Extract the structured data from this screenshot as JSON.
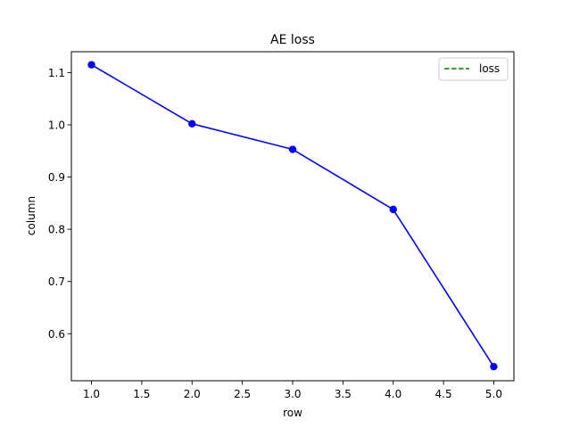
{
  "chart_data": {
    "type": "line",
    "title": "AE loss",
    "xlabel": "row",
    "ylabel": "column",
    "xlim": [
      0.8,
      5.2
    ],
    "ylim": [
      0.51,
      1.14
    ],
    "xticks": [
      1.0,
      1.5,
      2.0,
      2.5,
      3.0,
      3.5,
      4.0,
      4.5,
      5.0
    ],
    "xtick_labels": [
      "1.0",
      "1.5",
      "2.0",
      "2.5",
      "3.0",
      "3.5",
      "4.0",
      "4.5",
      "5.0"
    ],
    "yticks": [
      0.6,
      0.7,
      0.8,
      0.9,
      1.0,
      1.1
    ],
    "ytick_labels": [
      "0.6",
      "0.7",
      "0.8",
      "0.9",
      "1.0",
      "1.1"
    ],
    "grid": false,
    "legend": {
      "position": "top-right",
      "entries": [
        {
          "label": "loss",
          "color": "#008000",
          "style": "dashed"
        }
      ]
    },
    "series": [
      {
        "color": "#0000ff",
        "marker": "circle",
        "x": [
          1,
          2,
          3,
          4,
          5
        ],
        "y": [
          1.115,
          1.002,
          0.953,
          0.838,
          0.537
        ]
      }
    ]
  }
}
